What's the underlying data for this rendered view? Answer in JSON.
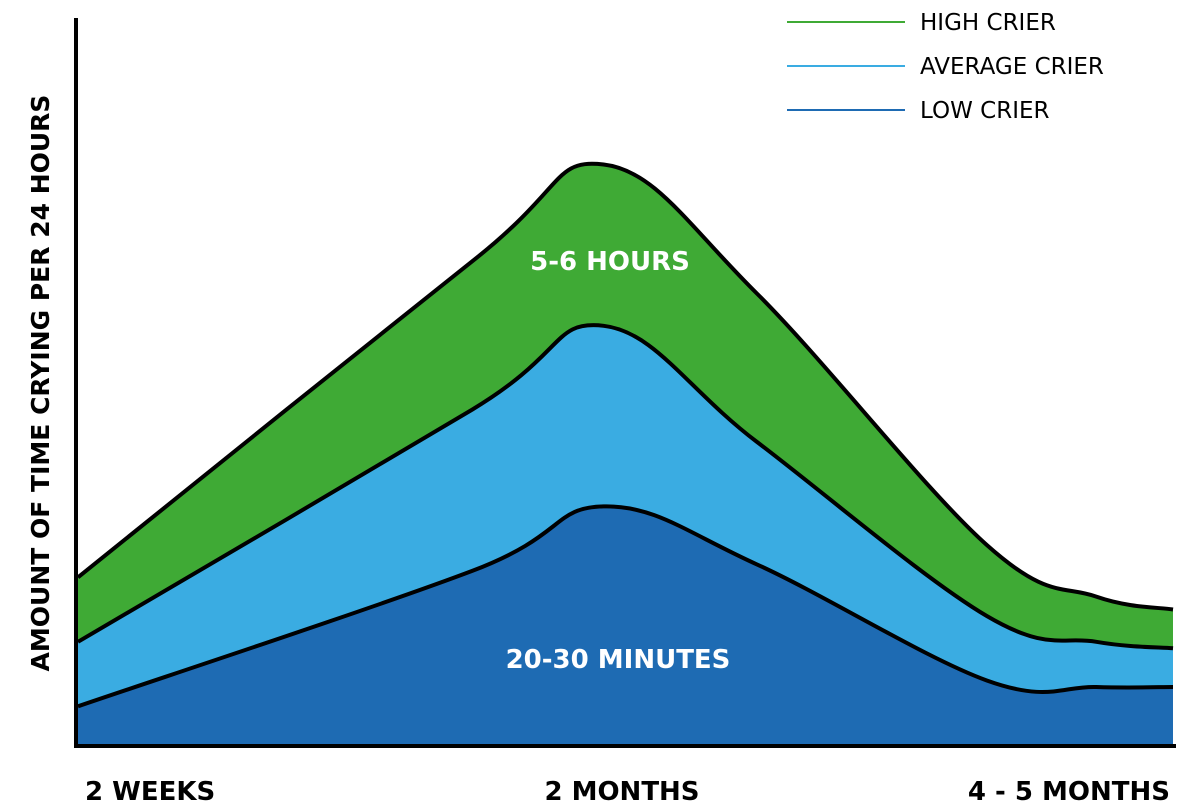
{
  "chart_data": {
    "type": "area",
    "ylabel": "AMOUNT OF TIME CRYING PER 24 HOURS",
    "xlabel": "",
    "x_ticks": [
      "2 WEEKS",
      "2 MONTHS",
      "4 - 5 MONTHS"
    ],
    "grid": false,
    "legend_position": "top-right",
    "x": [
      0,
      0.36,
      0.48,
      0.62,
      0.83,
      0.93,
      1.0
    ],
    "series": [
      {
        "name": "HIGH CRIER",
        "color": "#3faa35",
        "values": [
          0.26,
          0.75,
          0.9,
          0.7,
          0.31,
          0.23,
          0.21
        ]
      },
      {
        "name": "AVERAGE CRIER",
        "color": "#3aace2",
        "values": [
          0.16,
          0.52,
          0.65,
          0.47,
          0.2,
          0.16,
          0.15
        ]
      },
      {
        "name": "LOW CRIER",
        "color": "#1e6bb3",
        "values": [
          0.06,
          0.27,
          0.37,
          0.28,
          0.1,
          0.09,
          0.09
        ]
      }
    ],
    "annotations": [
      {
        "text": "5-6 HOURS",
        "series": "HIGH CRIER"
      },
      {
        "text": "20-30 MINUTES",
        "series": "LOW CRIER"
      }
    ]
  }
}
